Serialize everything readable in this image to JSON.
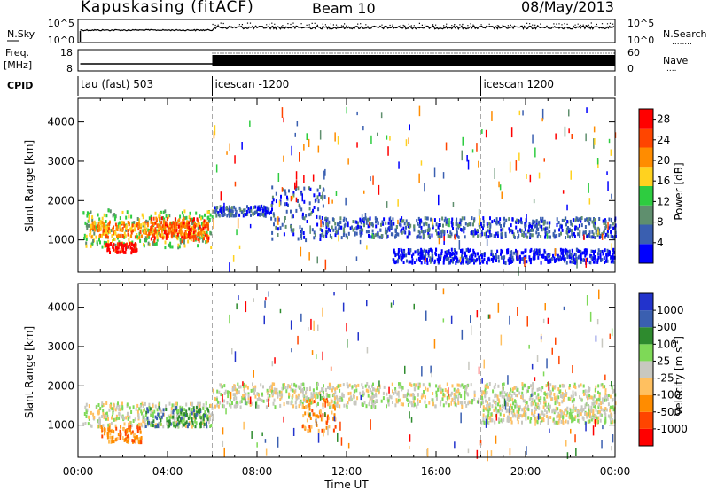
{
  "header": {
    "station": "Kapuskasing (fitACF)",
    "beam": "Beam 10",
    "date": "08/May/2013"
  },
  "nsky_panel": {
    "left_label": "N.Sky",
    "right_label": "N.Search",
    "right_label_marker": "........",
    "ticks_left": [
      "10^5",
      "10^0"
    ],
    "ticks_right": [
      "10^5",
      "10^0"
    ]
  },
  "freq_panel": {
    "left_label_1": "Freq.",
    "left_label_2": "[MHz]",
    "right_label": "Nave",
    "right_label_marker": "....",
    "ticks_left": [
      "18",
      "8"
    ],
    "ticks_right": [
      "60",
      "0"
    ]
  },
  "cpid_panel": {
    "label": "CPID",
    "segments": [
      {
        "name": "tau (fast) 503",
        "start_hour": 0
      },
      {
        "name": "icescan -1200",
        "start_hour": 6
      },
      {
        "name": "icescan 1200",
        "start_hour": 18
      }
    ]
  },
  "colors": {
    "power": [
      "#0000ff",
      "#3a5fb0",
      "#5f8f6e",
      "#2ecc40",
      "#ffd21f",
      "#ff8c00",
      "#ff4500",
      "#ff0000"
    ],
    "velocity": [
      "#ff0000",
      "#ff4500",
      "#ff8c00",
      "#ffc060",
      "#c8c8c0",
      "#7ed957",
      "#2e8b2e",
      "#3a5fb0",
      "#2233cc"
    ]
  },
  "chart_data": [
    {
      "type": "heatmap",
      "parameter": "power",
      "ylabel": "Slant Range [km]",
      "xlabel": "Time UT",
      "x_ticks": [
        "00:00",
        "04:00",
        "08:00",
        "12:00",
        "16:00",
        "20:00",
        "00:00"
      ],
      "y_ticks": [
        "1000",
        "2000",
        "3000",
        "4000"
      ],
      "xlim_hours": [
        0,
        24
      ],
      "ylim_km": [
        180,
        4600
      ],
      "colorbar_label": "Power [dB]",
      "colorbar_ticks": [
        "4",
        "8",
        "12",
        "16",
        "20",
        "24",
        "28"
      ],
      "colorbar_range": [
        0,
        30
      ],
      "regions": [
        {
          "t0": 0.2,
          "t1": 6.0,
          "r0": 850,
          "r1": 1800,
          "level": 3
        },
        {
          "t0": 0.5,
          "t1": 5.8,
          "r0": 1100,
          "r1": 1500,
          "level": 5
        },
        {
          "t0": 1.2,
          "t1": 2.6,
          "r0": 700,
          "r1": 950,
          "level": 7
        },
        {
          "t0": 3.2,
          "t1": 5.8,
          "r0": 1000,
          "r1": 1600,
          "level": 6
        },
        {
          "t0": 6.0,
          "t1": 8.5,
          "r0": 1650,
          "r1": 1900,
          "level": 1
        },
        {
          "t0": 8.5,
          "t1": 11.0,
          "r0": 1000,
          "r1": 2400,
          "level": 1
        },
        {
          "t0": 11.0,
          "t1": 24.0,
          "r0": 1100,
          "r1": 1600,
          "level": 1
        },
        {
          "t0": 14.0,
          "t1": 24.0,
          "r0": 450,
          "r1": 800,
          "level": 0
        }
      ]
    },
    {
      "type": "heatmap",
      "parameter": "velocity",
      "ylabel": "Slant Range [km]",
      "xlabel": "Time UT",
      "x_ticks": [
        "00:00",
        "04:00",
        "08:00",
        "12:00",
        "16:00",
        "20:00",
        "00:00"
      ],
      "y_ticks": [
        "1000",
        "2000",
        "3000",
        "4000"
      ],
      "xlim_hours": [
        0,
        24
      ],
      "ylim_km": [
        180,
        4600
      ],
      "colorbar_label": "Velocity [m s",
      "colorbar_label_sup": "-1",
      "colorbar_label_end": "]",
      "colorbar_ticks": [
        "1000",
        "500",
        "100",
        "25",
        "-25",
        "-100",
        "-500",
        "-1000"
      ],
      "regions": [
        {
          "t0": 0.2,
          "t1": 6.0,
          "r0": 1000,
          "r1": 1600,
          "level": 4
        },
        {
          "t0": 1.0,
          "t1": 2.8,
          "r0": 600,
          "r1": 1000,
          "level": 2
        },
        {
          "t0": 3.0,
          "t1": 5.8,
          "r0": 1000,
          "r1": 1500,
          "level": 6
        },
        {
          "t0": 6.0,
          "t1": 24.0,
          "r0": 1500,
          "r1": 2100,
          "level": 4
        },
        {
          "t0": 10.0,
          "t1": 11.5,
          "r0": 900,
          "r1": 1700,
          "level": 2
        },
        {
          "t0": 18.0,
          "t1": 24.0,
          "r0": 1100,
          "r1": 1500,
          "level": 4
        }
      ]
    }
  ],
  "xlabel": "Time UT"
}
